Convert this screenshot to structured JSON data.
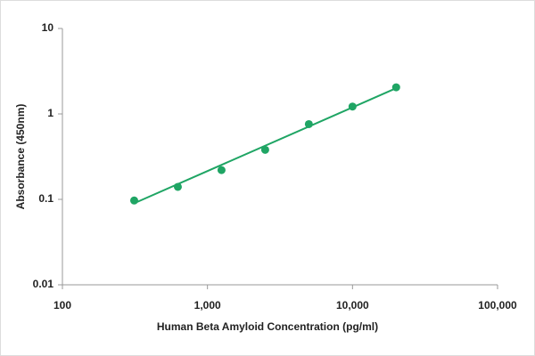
{
  "chart_data": {
    "type": "scatter",
    "x_label": "Human Beta Amyloid  Concentration (pg/ml)",
    "y_label": "Absorbance (450nm)",
    "log_x": true,
    "log_y": true,
    "color": "#1fa564",
    "x": [
      312.5,
      625,
      1250,
      2500,
      5000,
      10000,
      20000
    ],
    "values": [
      0.097,
      0.14,
      0.22,
      0.38,
      0.76,
      1.22,
      2.05
    ],
    "fit_line": {
      "x": [
        312.5,
        20000
      ],
      "values": [
        0.09,
        2.0
      ]
    },
    "xlim": [
      100,
      100000
    ],
    "xticks": [
      100,
      {
        "value": 1000,
        "label": "1,000"
      },
      {
        "value": 10000,
        "label": "10,000"
      },
      {
        "value": 100000,
        "label": "100,000"
      }
    ],
    "ylim": [
      0.01,
      10
    ],
    "yticks": [
      0.01,
      0.1,
      1,
      10
    ],
    "grid": false
  }
}
